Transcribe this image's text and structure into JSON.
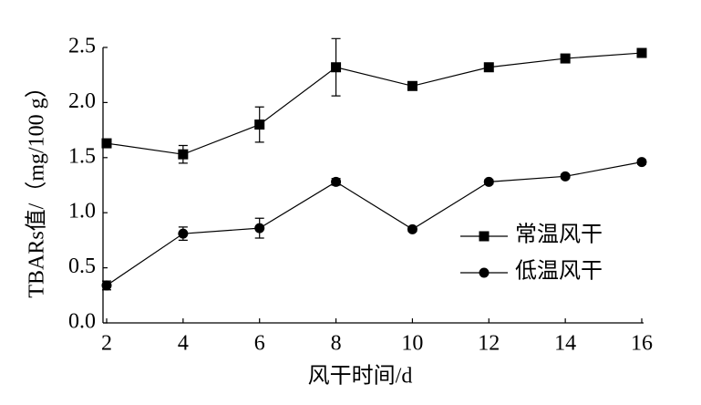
{
  "chart_data": {
    "type": "line",
    "x_label": "风干时间/d",
    "y_label": "TBARs值/（mg/100 g）",
    "xlim": [
      2,
      16
    ],
    "xticks": [
      2,
      4,
      6,
      8,
      10,
      12,
      14,
      16
    ],
    "ylim": [
      0,
      2.5
    ],
    "yticks": [
      {
        "value": 0,
        "label": "0.0"
      },
      0.5,
      {
        "value": 1,
        "label": "1.0"
      },
      1.5,
      {
        "value": 2,
        "label": "2.0"
      },
      2.5
    ],
    "x": [
      2,
      4,
      6,
      8,
      10,
      12,
      14,
      16
    ],
    "legend": "right",
    "series": [
      {
        "name": "常温风干",
        "color": "#000000",
        "marker": "square",
        "values": [
          1.63,
          1.53,
          1.8,
          2.32,
          2.15,
          2.32,
          2.4,
          2.45
        ],
        "errors": [
          0.02,
          0.08,
          0.16,
          0.26,
          0.02,
          0.02,
          0.02,
          0.02
        ]
      },
      {
        "name": "低温风干",
        "color": "#000000",
        "marker": "circle",
        "values": [
          0.34,
          0.81,
          0.86,
          1.28,
          0.85,
          1.28,
          1.33,
          1.46
        ],
        "errors": [
          0.04,
          0.06,
          0.09,
          0.03,
          0.02,
          0.02,
          0.02,
          0.02
        ]
      }
    ]
  }
}
